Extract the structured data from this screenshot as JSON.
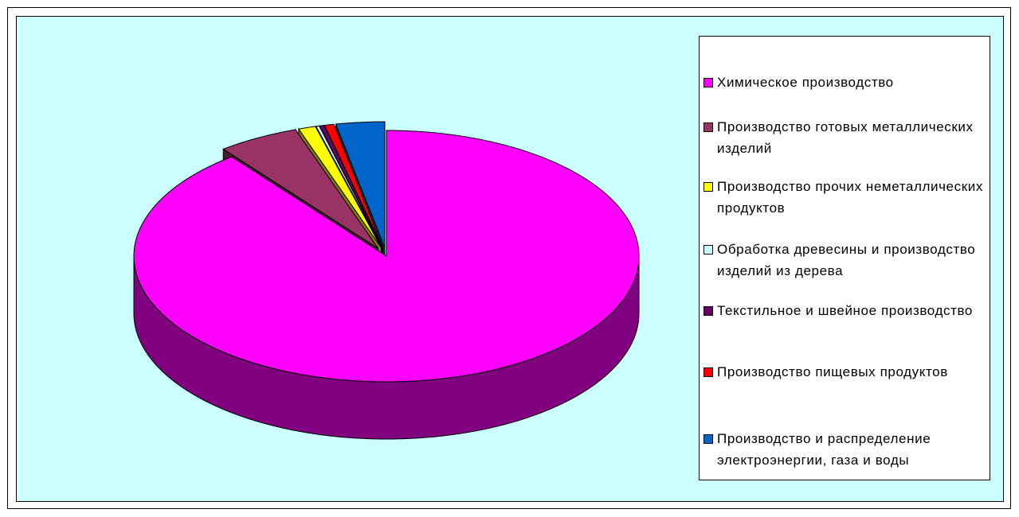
{
  "chart_data": {
    "type": "pie3d",
    "categories": [
      "Химическое производство",
      "Производство готовых металлических изделий",
      "Производство прочих неметаллических продуктов",
      "Обработка древесины и производство изделий из дерева",
      "Текстильное и швейное производство",
      "Производство пищевых продуктов",
      "Производство и распределение электроэнергии, газа и воды"
    ],
    "values": [
      89.5,
      5.2,
      1.1,
      0.2,
      0.3,
      0.6,
      3.1
    ],
    "colors": [
      "#FF00FF",
      "#993366",
      "#FFFF00",
      "#CCFFFF",
      "#660066",
      "#FF0000",
      "#0066CC"
    ]
  }
}
